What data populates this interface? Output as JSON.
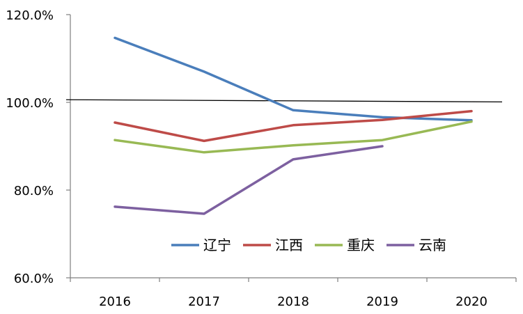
{
  "chart_data": {
    "type": "line",
    "categories": [
      "2016",
      "2017",
      "2018",
      "2019",
      "2020"
    ],
    "ylim": [
      60,
      120
    ],
    "yticks": [
      60,
      80,
      100,
      120
    ],
    "ytick_labels": [
      "60.0%",
      "80.0%",
      "100.0%",
      "120.0%"
    ],
    "grid": false,
    "legend_position": "bottom-right",
    "reference_line": {
      "y_start": 100.6,
      "y_end": 100.1,
      "color": "#000000"
    },
    "series": [
      {
        "name": "辽宁",
        "color": "#4a7ebb",
        "values": [
          114.7,
          107.0,
          98.2,
          96.6,
          95.9
        ]
      },
      {
        "name": "江西",
        "color": "#be4b48",
        "values": [
          95.4,
          91.2,
          94.8,
          96.0,
          98.0
        ]
      },
      {
        "name": "重庆",
        "color": "#98b954",
        "values": [
          91.4,
          88.6,
          90.2,
          91.4,
          95.6
        ]
      },
      {
        "name": "云南",
        "color": "#7d60a0",
        "values": [
          76.2,
          74.6,
          87.0,
          90.0,
          null
        ]
      }
    ]
  }
}
